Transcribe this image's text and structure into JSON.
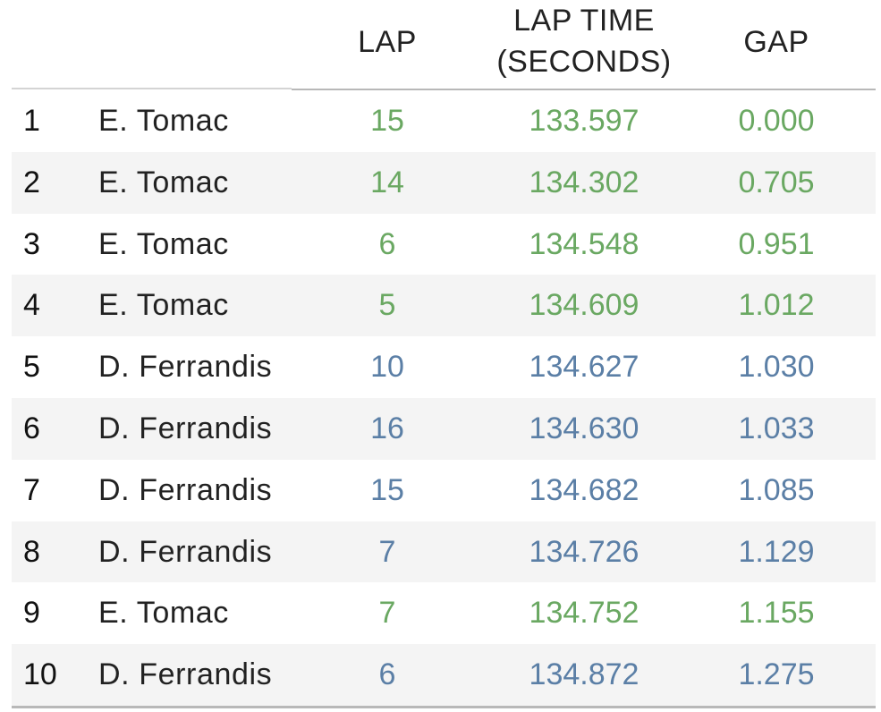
{
  "chart_data": {
    "type": "table",
    "columns": [
      "",
      "",
      "LAP",
      "LAP TIME\n(SECONDS)",
      "GAP"
    ],
    "header": {
      "lap": "LAP",
      "lap_time_line1": "LAP TIME",
      "lap_time_line2": "(SECONDS)",
      "gap": "GAP"
    },
    "colors": {
      "E. Tomac": "#6aa862",
      "D. Ferrandis": "#5b7fa6"
    },
    "rows": [
      {
        "rank": "1",
        "rider": "E. Tomac",
        "lap": "15",
        "lap_time": "133.597",
        "gap": "0.000"
      },
      {
        "rank": "2",
        "rider": "E. Tomac",
        "lap": "14",
        "lap_time": "134.302",
        "gap": "0.705"
      },
      {
        "rank": "3",
        "rider": "E. Tomac",
        "lap": "6",
        "lap_time": "134.548",
        "gap": "0.951"
      },
      {
        "rank": "4",
        "rider": "E. Tomac",
        "lap": "5",
        "lap_time": "134.609",
        "gap": "1.012"
      },
      {
        "rank": "5",
        "rider": "D. Ferrandis",
        "lap": "10",
        "lap_time": "134.627",
        "gap": "1.030"
      },
      {
        "rank": "6",
        "rider": "D. Ferrandis",
        "lap": "16",
        "lap_time": "134.630",
        "gap": "1.033"
      },
      {
        "rank": "7",
        "rider": "D. Ferrandis",
        "lap": "15",
        "lap_time": "134.682",
        "gap": "1.085"
      },
      {
        "rank": "8",
        "rider": "D. Ferrandis",
        "lap": "7",
        "lap_time": "134.726",
        "gap": "1.129"
      },
      {
        "rank": "9",
        "rider": "E. Tomac",
        "lap": "7",
        "lap_time": "134.752",
        "gap": "1.155"
      },
      {
        "rank": "10",
        "rider": "D. Ferrandis",
        "lap": "6",
        "lap_time": "134.872",
        "gap": "1.275"
      }
    ]
  }
}
